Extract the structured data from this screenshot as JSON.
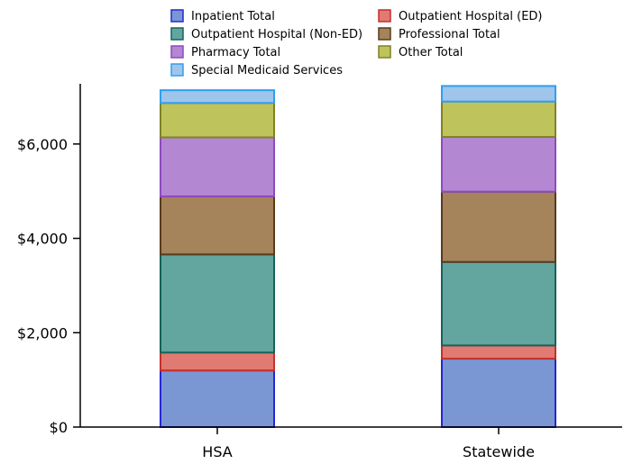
{
  "chart_data": {
    "type": "bar",
    "stacked": true,
    "categories": [
      "HSA",
      "Statewide"
    ],
    "series": [
      {
        "name": "Inpatient Total",
        "values": [
          1200,
          1450
        ],
        "fill": "#7b97d3",
        "stroke": "#2626d6"
      },
      {
        "name": "Outpatient Hospital (ED)",
        "values": [
          380,
          280
        ],
        "fill": "#e07a72",
        "stroke": "#c4312a"
      },
      {
        "name": "Outpatient Hospital (Non-ED)",
        "values": [
          2080,
          1770
        ],
        "fill": "#63a69f",
        "stroke": "#16635a"
      },
      {
        "name": "Professional Total",
        "values": [
          1230,
          1490
        ],
        "fill": "#a5835b",
        "stroke": "#5a3b1c"
      },
      {
        "name": "Pharmacy Total",
        "values": [
          1250,
          1160
        ],
        "fill": "#b487d2",
        "stroke": "#8f49c2"
      },
      {
        "name": "Other Total",
        "values": [
          730,
          750
        ],
        "fill": "#bfc35c",
        "stroke": "#7f8226"
      },
      {
        "name": "Special Medicaid Services",
        "values": [
          270,
          330
        ],
        "fill": "#9fc6ea",
        "stroke": "#2e9ff0"
      }
    ],
    "ylim": [
      0,
      7200
    ],
    "yticks": [
      0,
      2000,
      4000,
      6000
    ],
    "ytick_labels": [
      "$0",
      "$2,000",
      "$4,000",
      "$6,000"
    ],
    "legend_position": "top",
    "grid": false
  }
}
